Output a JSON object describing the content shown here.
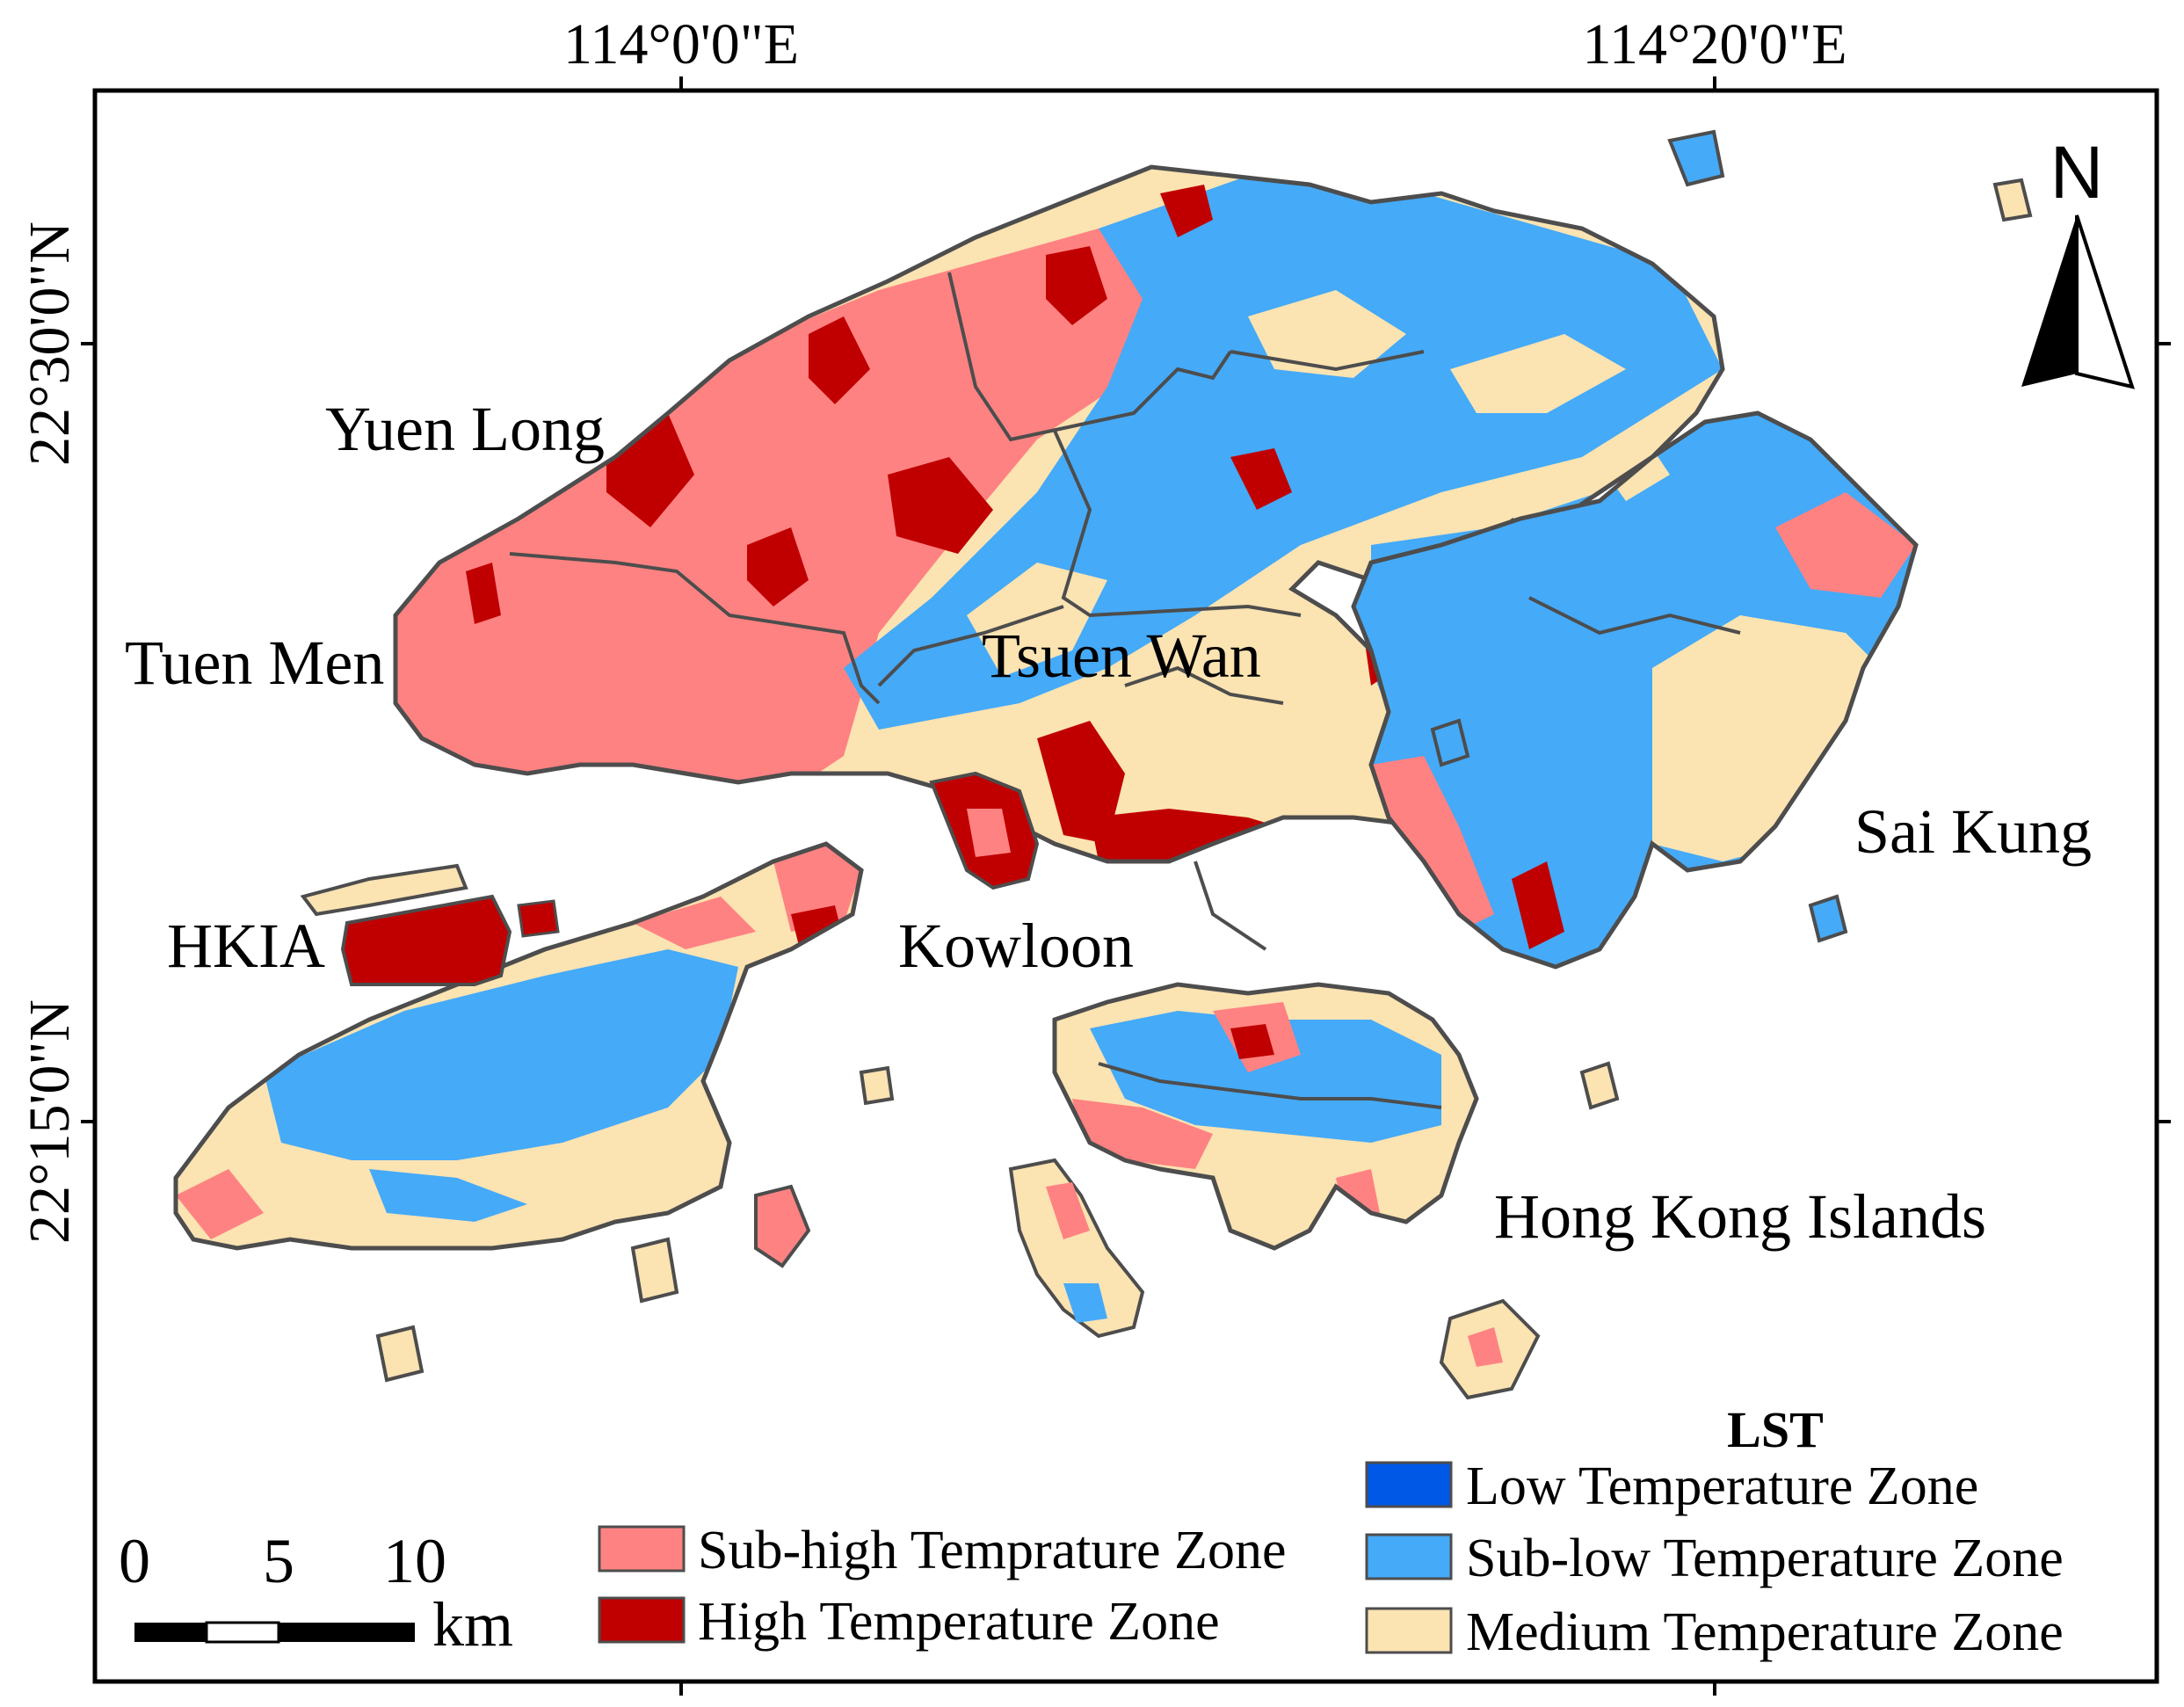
{
  "axes": {
    "top_labels": [
      "114°0'0\"E",
      "114°20'0\"E"
    ],
    "left_labels": [
      "22°30'0\"N",
      "22°15'0\"N"
    ]
  },
  "places": {
    "yuen_long": "Yuen Long",
    "tuen_men": "Tuen Men",
    "tsuen_wan": "Tsuen Wan",
    "sai_kung": "Sai Kung",
    "hkia": "HKIA",
    "kowloon": "Kowloon",
    "hong_kong_islands": "Hong Kong Islands"
  },
  "north_arrow": {
    "label": "N"
  },
  "scale_bar": {
    "ticks": [
      "0",
      "5",
      "10"
    ],
    "unit": "km"
  },
  "legend": {
    "title": "LST",
    "items": [
      {
        "label": "Sub-high Temprature Zone",
        "color": "#ff8282"
      },
      {
        "label": "High Temperature Zone",
        "color": "#c00000"
      },
      {
        "label": "Low Temperature Zone",
        "color": "#0058e6"
      },
      {
        "label": "Sub-low Temperature Zone",
        "color": "#45aaf8"
      },
      {
        "label": "Medium Temperature Zone",
        "color": "#fbe3b2"
      }
    ]
  },
  "colors": {
    "frame": "#000000",
    "district_border": "#4d4d4d",
    "sub_high": "#ff8282",
    "high": "#c00000",
    "sub_low": "#45aaf8",
    "medium": "#fbe3b2"
  }
}
